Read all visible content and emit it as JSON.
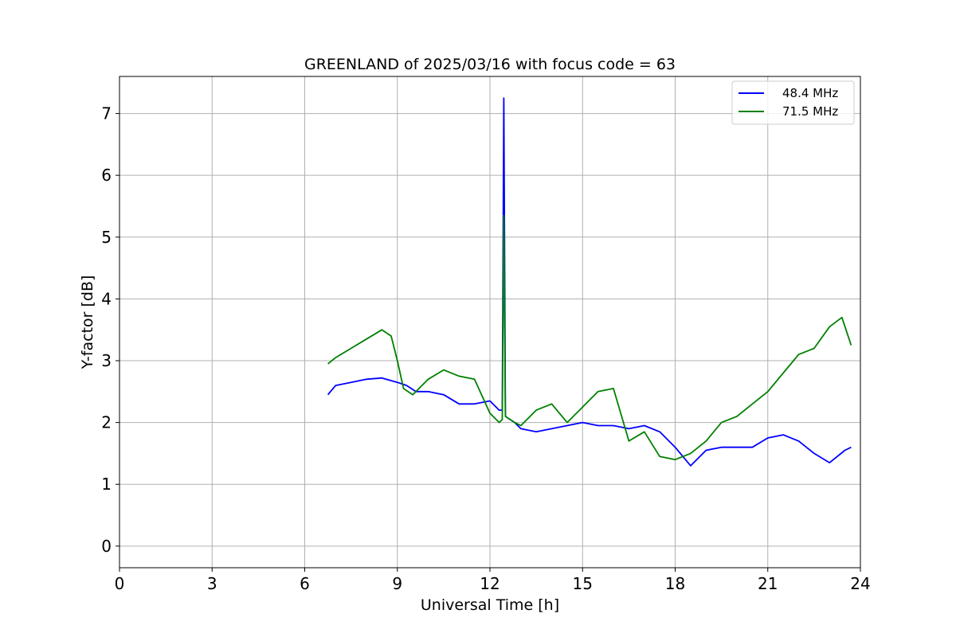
{
  "chart_data": {
    "type": "line",
    "title": "GREENLAND of 2025/03/16 with focus code = 63",
    "xlabel": "Universal Time [h]",
    "ylabel": "Y-factor [dB]",
    "xlim": [
      0,
      24
    ],
    "ylim": [
      -0.35,
      7.6
    ],
    "xticks": [
      0,
      3,
      6,
      9,
      12,
      15,
      18,
      21,
      24
    ],
    "yticks": [
      0,
      1,
      2,
      3,
      4,
      5,
      6,
      7
    ],
    "grid": true,
    "legend": "top-right",
    "series": [
      {
        "name": "48.4 MHz",
        "color": "#0000ff",
        "x": [
          6.75,
          7.0,
          7.5,
          8.0,
          8.5,
          9.0,
          9.3,
          9.6,
          10.0,
          10.5,
          11.0,
          11.5,
          12.0,
          12.3,
          12.4,
          12.45,
          12.5,
          12.8,
          13.0,
          13.5,
          14.0,
          14.5,
          15.0,
          15.5,
          16.0,
          16.5,
          17.0,
          17.5,
          18.0,
          18.5,
          19.0,
          19.5,
          20.0,
          20.5,
          21.0,
          21.5,
          22.0,
          22.5,
          23.0,
          23.5,
          23.7
        ],
        "y": [
          2.45,
          2.6,
          2.65,
          2.7,
          2.72,
          2.65,
          2.6,
          2.5,
          2.5,
          2.45,
          2.3,
          2.3,
          2.35,
          2.2,
          2.2,
          7.25,
          2.1,
          2.0,
          1.9,
          1.85,
          1.9,
          1.95,
          2.0,
          1.95,
          1.95,
          1.9,
          1.95,
          1.85,
          1.6,
          1.3,
          1.55,
          1.6,
          1.6,
          1.6,
          1.75,
          1.8,
          1.7,
          1.5,
          1.35,
          1.55,
          1.6
        ]
      },
      {
        "name": "71.5 MHz",
        "color": "#008000",
        "x": [
          6.75,
          7.0,
          7.5,
          8.0,
          8.5,
          8.8,
          9.0,
          9.2,
          9.5,
          10.0,
          10.5,
          11.0,
          11.5,
          12.0,
          12.3,
          12.4,
          12.45,
          12.5,
          12.8,
          13.0,
          13.5,
          14.0,
          14.5,
          15.0,
          15.5,
          16.0,
          16.5,
          17.0,
          17.5,
          18.0,
          18.5,
          19.0,
          19.5,
          20.0,
          20.5,
          21.0,
          21.5,
          22.0,
          22.5,
          23.0,
          23.4,
          23.7
        ],
        "y": [
          2.95,
          3.05,
          3.2,
          3.35,
          3.5,
          3.4,
          3.0,
          2.55,
          2.45,
          2.7,
          2.85,
          2.75,
          2.7,
          2.15,
          2.0,
          2.05,
          5.35,
          2.1,
          2.0,
          1.95,
          2.2,
          2.3,
          2.0,
          2.25,
          2.5,
          2.55,
          1.7,
          1.85,
          1.45,
          1.4,
          1.5,
          1.7,
          2.0,
          2.1,
          2.3,
          2.5,
          2.8,
          3.1,
          3.2,
          3.55,
          3.7,
          3.25
        ]
      }
    ]
  }
}
